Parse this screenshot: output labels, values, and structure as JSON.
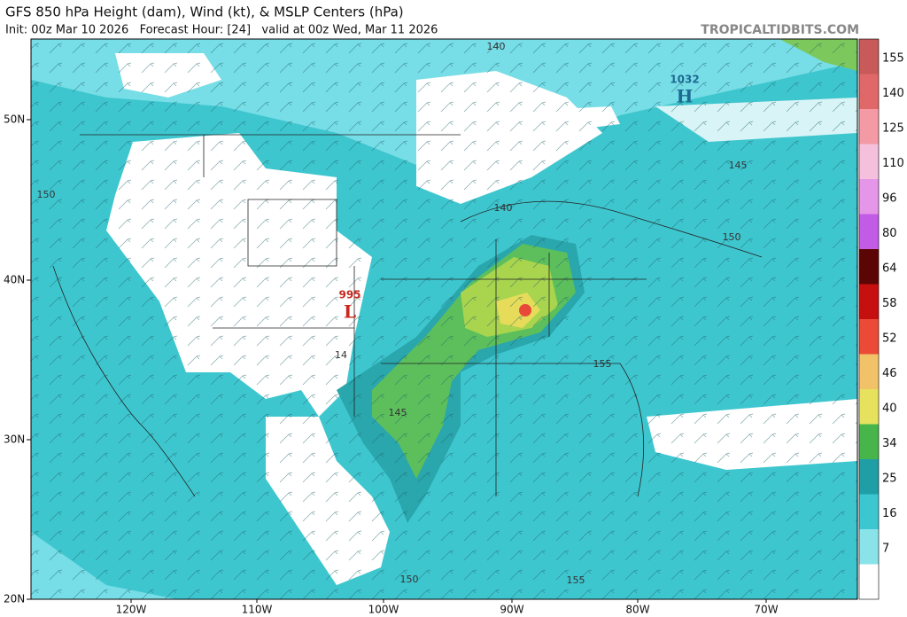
{
  "header": {
    "title": "GFS 850 hPa Height (dam), Wind (kt), & MSLP Centers (hPa)",
    "subtitle": "Init: 00z Mar 10 2026   Forecast Hour: [24]   valid at 00z Wed, Mar 11 2026",
    "site": "TROPICALTIDBITS.COM"
  },
  "map": {
    "lat_labels": [
      "50N",
      "40N",
      "30N",
      "20N"
    ],
    "lon_labels": [
      "120W",
      "110W",
      "100W",
      "90W",
      "80W",
      "70W"
    ],
    "centers": [
      {
        "value": "1032",
        "symbol": "H"
      },
      {
        "value": "995",
        "symbol": "L"
      }
    ],
    "contour_labels": [
      "140",
      "150",
      "140",
      "145",
      "150",
      "14",
      "145",
      "155",
      "150",
      "155"
    ]
  },
  "colorbar": {
    "labels": [
      "155",
      "140",
      "125",
      "110",
      "96",
      "80",
      "64",
      "58",
      "52",
      "46",
      "40",
      "34",
      "25",
      "16",
      "7"
    ]
  }
}
